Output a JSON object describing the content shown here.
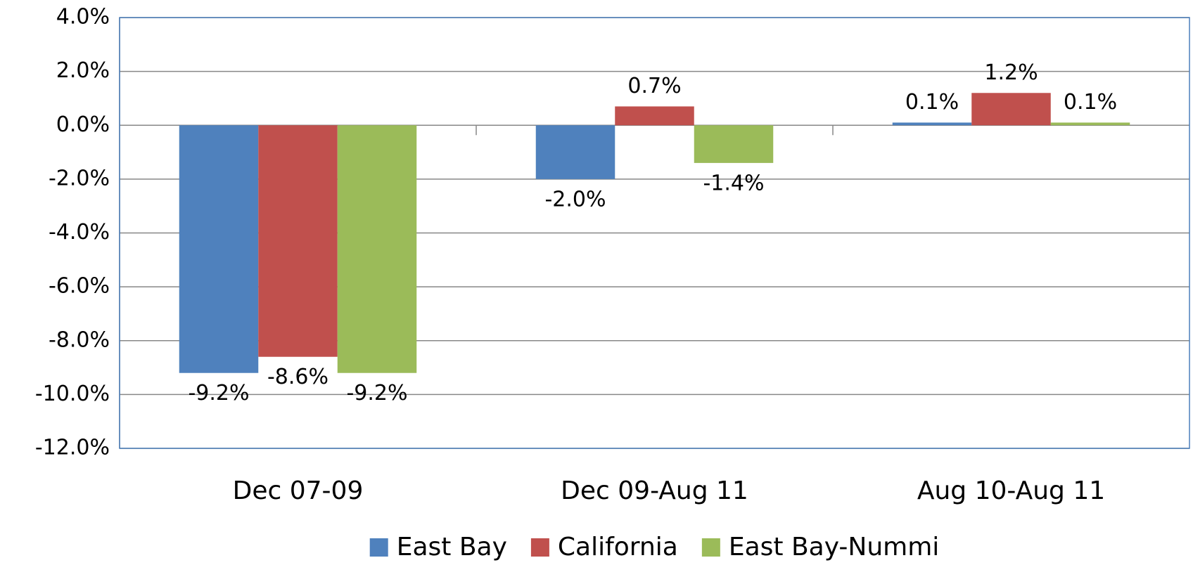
{
  "chart_data": {
    "type": "bar",
    "categories": [
      "Dec 07-09",
      "Dec 09-Aug 11",
      "Aug 10-Aug 11"
    ],
    "series": [
      {
        "name": "East Bay",
        "color": "#4f81bd",
        "values": [
          -9.2,
          -2.0,
          0.1
        ],
        "value_labels": [
          "-9.2%",
          "-2.0%",
          "0.1%"
        ]
      },
      {
        "name": "California",
        "color": "#c0504d",
        "values": [
          -8.6,
          0.7,
          1.2
        ],
        "value_labels": [
          "-8.6%",
          "0.7%",
          "1.2%"
        ]
      },
      {
        "name": "East Bay-Nummi",
        "color": "#9bbb59",
        "values": [
          -9.2,
          -1.4,
          0.1
        ],
        "value_labels": [
          "-9.2%",
          "-1.4%",
          "0.1%"
        ]
      }
    ],
    "ylim": [
      -12,
      4
    ],
    "yticks": [
      {
        "value": 4,
        "label": "4.0%"
      },
      {
        "value": 2,
        "label": "2.0%"
      },
      {
        "value": 0,
        "label": "0.0%"
      },
      {
        "value": -2,
        "label": "-2.0%"
      },
      {
        "value": -4,
        "label": "-4.0%"
      },
      {
        "value": -6,
        "label": "-6.0%"
      },
      {
        "value": -8,
        "label": "-8.0%"
      },
      {
        "value": -10,
        "label": "-10.0%"
      },
      {
        "value": -12,
        "label": "-12.0%"
      }
    ],
    "grid": true,
    "legend": "bottom"
  }
}
